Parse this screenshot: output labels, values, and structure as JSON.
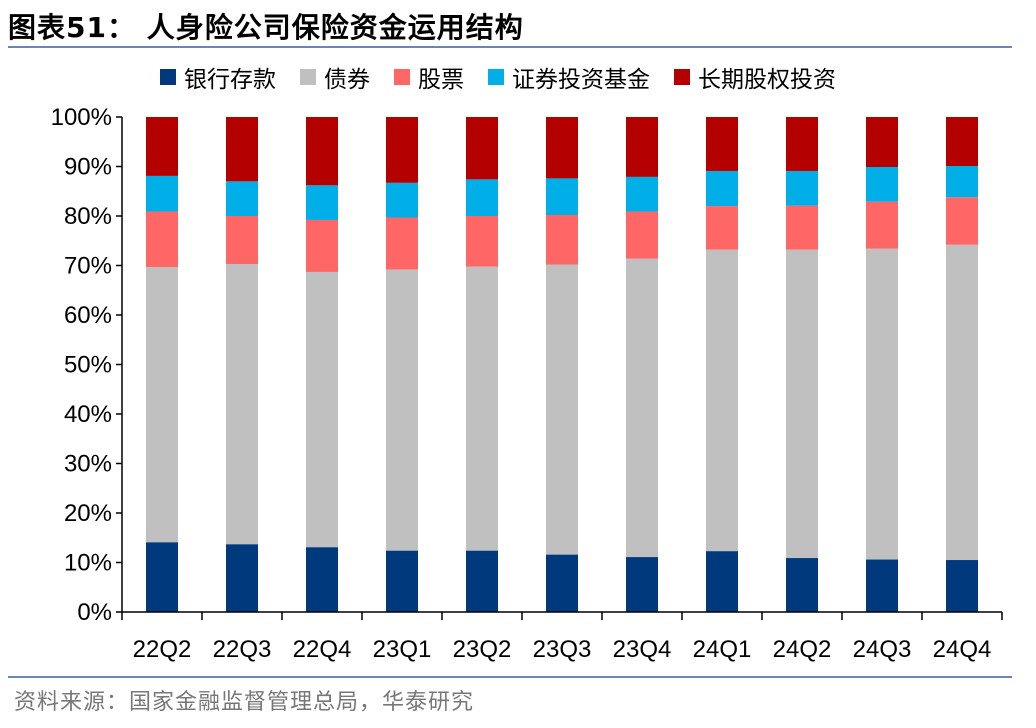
{
  "title": "图表51：  人身险公司保险资金运用结构",
  "source": "资料来源：国家金融监督管理总局，华泰研究",
  "colors": {
    "bank_deposits": "#003a7c",
    "bonds": "#c0c0c0",
    "stocks": "#ff6666",
    "securities_funds": "#00aee8",
    "long_term_equity": "#b50000"
  },
  "chart_data": {
    "type": "bar",
    "stacked": true,
    "title": "",
    "xlabel": "",
    "ylabel": "",
    "ylim": [
      0,
      100
    ],
    "ytick_labels": [
      "0%",
      "10%",
      "20%",
      "30%",
      "40%",
      "50%",
      "60%",
      "70%",
      "80%",
      "90%",
      "100%"
    ],
    "legend_position": "top",
    "categories": [
      "22Q2",
      "22Q3",
      "22Q4",
      "23Q1",
      "23Q2",
      "23Q3",
      "23Q4",
      "24Q1",
      "24Q2",
      "24Q3",
      "24Q4"
    ],
    "series": [
      {
        "name": "银行存款",
        "color_key": "bank_deposits",
        "values": [
          14.1,
          13.7,
          13.1,
          12.4,
          12.4,
          11.6,
          11.1,
          12.3,
          10.9,
          10.6,
          10.5
        ]
      },
      {
        "name": "债券",
        "color_key": "bonds",
        "values": [
          55.6,
          56.6,
          55.6,
          56.8,
          57.4,
          58.6,
          60.3,
          60.9,
          62.3,
          62.8,
          63.7
        ]
      },
      {
        "name": "股票",
        "color_key": "stocks",
        "values": [
          11.2,
          9.7,
          10.5,
          10.5,
          10.2,
          10.0,
          9.5,
          8.8,
          8.9,
          9.5,
          9.6
        ]
      },
      {
        "name": "证券投资基金",
        "color_key": "securities_funds",
        "values": [
          7.2,
          7.0,
          7.0,
          7.0,
          7.4,
          7.4,
          7.0,
          7.1,
          7.0,
          7.0,
          6.3
        ]
      },
      {
        "name": "长期股权投资",
        "color_key": "long_term_equity",
        "values": [
          11.9,
          13.0,
          13.8,
          13.3,
          12.6,
          12.4,
          12.1,
          10.9,
          10.9,
          10.1,
          9.9
        ]
      }
    ]
  }
}
